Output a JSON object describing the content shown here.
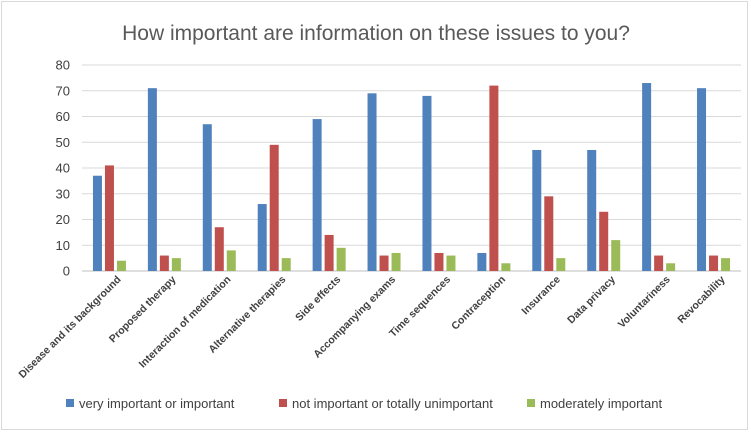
{
  "chart_data": {
    "type": "bar",
    "title": "How important are information on these issues to you?",
    "xlabel": "",
    "ylabel": "",
    "ylim": [
      0,
      80
    ],
    "yticks": [
      0,
      10,
      20,
      30,
      40,
      50,
      60,
      70,
      80
    ],
    "grid": true,
    "legend_position": "bottom",
    "categories": [
      "Disease and its background",
      "Proposed therapy",
      "Interaction of medication",
      "Alternative therapies",
      "Side effects",
      "Accompanying exams",
      "Time sequences",
      "Contraception",
      "Insurance",
      "Data privacy",
      "Voluntariness",
      "Revocability"
    ],
    "series": [
      {
        "name": "very important or important",
        "color": "#4f81bd",
        "values": [
          37,
          71,
          57,
          26,
          59,
          69,
          68,
          7,
          47,
          47,
          73,
          71
        ]
      },
      {
        "name": "not important or totally unimportant",
        "color": "#c0504d",
        "values": [
          41,
          6,
          17,
          49,
          14,
          6,
          7,
          72,
          29,
          23,
          6,
          6
        ]
      },
      {
        "name": "moderately important",
        "color": "#9bbb59",
        "values": [
          4,
          5,
          8,
          5,
          9,
          7,
          6,
          3,
          5,
          12,
          3,
          5
        ]
      }
    ]
  }
}
